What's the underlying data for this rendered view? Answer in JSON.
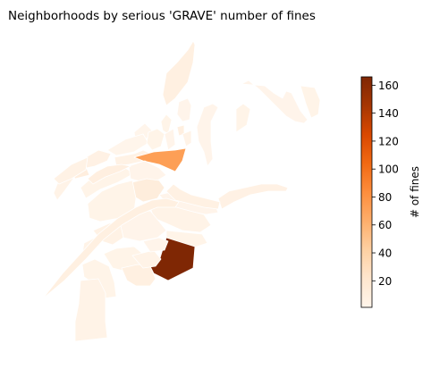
{
  "chart_data": {
    "type": "choropleth",
    "title": "Neighborhoods by serious 'GRAVE' number of fines",
    "colorbar": {
      "label": "# of fines",
      "range": [
        1,
        166
      ],
      "ticks": [
        20,
        40,
        60,
        80,
        100,
        120,
        140,
        160
      ],
      "tick_labels": [
        "20",
        "40",
        "60",
        "80",
        "100",
        "120",
        "140",
        "160"
      ],
      "colormap": "Oranges",
      "stops": [
        "#fff5eb",
        "#fee6ce",
        "#fdd0a2",
        "#fdae6b",
        "#fd8d3c",
        "#f16913",
        "#d94801",
        "#a63603",
        "#7f2704"
      ]
    },
    "regions": [
      {
        "value": 8
      },
      {
        "value": 2
      },
      {
        "value": 3
      },
      {
        "value": 1
      },
      {
        "value": 1
      },
      {
        "value": 6
      },
      {
        "value": 10
      },
      {
        "value": 4
      },
      {
        "value": 3
      },
      {
        "value": 2
      },
      {
        "value": 9
      },
      {
        "value": 5
      },
      {
        "value": 72
      },
      {
        "value": 4
      },
      {
        "value": 3
      },
      {
        "value": 2
      },
      {
        "value": 12
      },
      {
        "value": 3
      },
      {
        "value": 2
      },
      {
        "value": 4
      },
      {
        "value": 2
      },
      {
        "value": 3
      },
      {
        "value": 5
      },
      {
        "value": 4
      },
      {
        "value": 6
      },
      {
        "value": 3
      },
      {
        "value": 3
      },
      {
        "value": 8
      },
      {
        "value": 4
      },
      {
        "value": 2
      },
      {
        "value": 3
      },
      {
        "value": 166
      },
      {
        "value": 2
      },
      {
        "value": 4
      },
      {
        "value": 3
      },
      {
        "value": 2
      },
      {
        "value": 5
      },
      {
        "value": 8
      },
      {
        "value": 7
      },
      {
        "value": 9
      }
    ]
  }
}
